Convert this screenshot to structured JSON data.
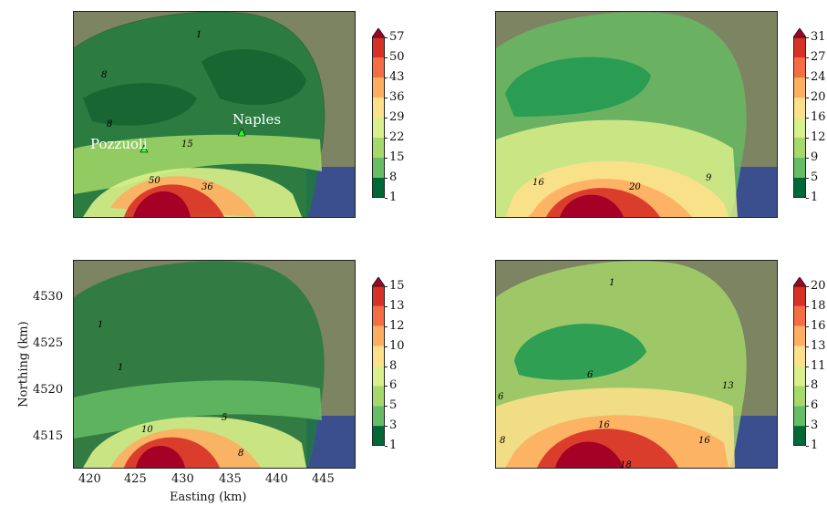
{
  "axes": {
    "ylabel": "Northing (km)",
    "xlabel": "Easting (km)",
    "xticks": [
      "420",
      "425",
      "430",
      "435",
      "440",
      "445"
    ],
    "yticks": [
      "4530",
      "4525",
      "4520",
      "4515"
    ]
  },
  "panels": [
    {
      "id": "top-left",
      "colorbar": [
        "57",
        "50",
        "43",
        "36",
        "29",
        "22",
        "15",
        "8",
        "1"
      ],
      "contour_labels": [
        "1",
        "8",
        "8",
        "15",
        "36",
        "50"
      ],
      "places": [
        "Naples",
        "Pozzuoli"
      ]
    },
    {
      "id": "top-right",
      "colorbar": [
        "31",
        "27",
        "24",
        "20",
        "16",
        "12",
        "9",
        "5",
        "1"
      ],
      "contour_labels": [
        "16",
        "20",
        "9"
      ]
    },
    {
      "id": "bottom-left",
      "colorbar": [
        "15",
        "13",
        "12",
        "10",
        "8",
        "6",
        "5",
        "3",
        "1"
      ],
      "contour_labels": [
        "1",
        "1",
        "5",
        "10",
        "8"
      ]
    },
    {
      "id": "bottom-right",
      "colorbar": [
        "20",
        "18",
        "16",
        "13",
        "11",
        "8",
        "6",
        "3",
        "1"
      ],
      "contour_labels": [
        "1",
        "6",
        "13",
        "16",
        "16",
        "18",
        "8",
        "6"
      ]
    }
  ],
  "colors": {
    "scale": [
      "#006837",
      "#1a9850",
      "#66bd63",
      "#a6d96a",
      "#d9ef8b",
      "#fee08b",
      "#fdae61",
      "#f46d43",
      "#d73027",
      "#a50026"
    ],
    "marker": "#22ff22"
  }
}
